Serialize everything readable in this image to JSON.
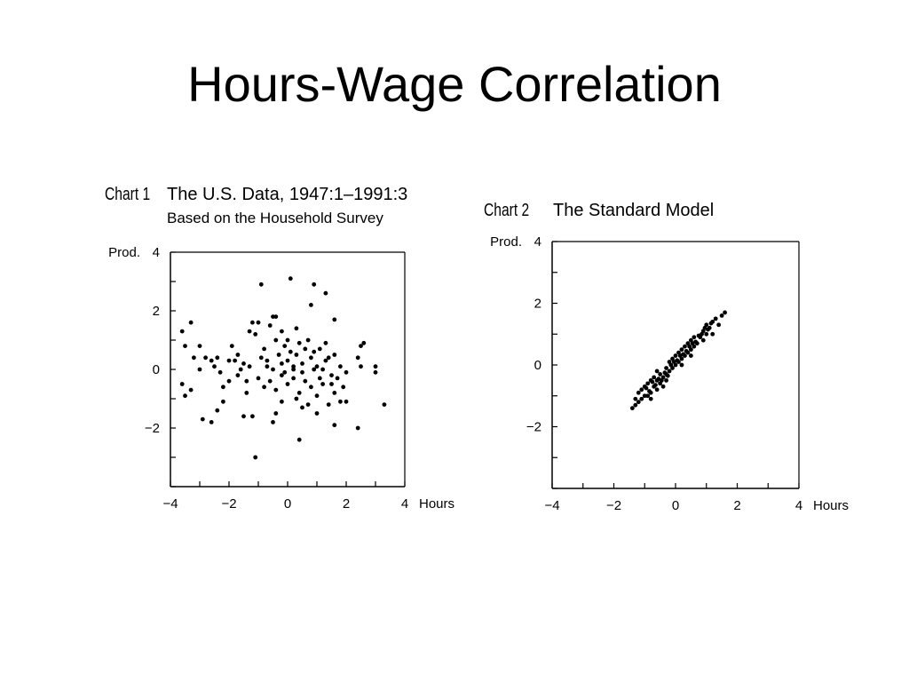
{
  "slide": {
    "title": "Hours-Wage Correlation"
  },
  "chart_data": [
    {
      "type": "scatter",
      "label": "Chart 1",
      "title": "The U.S. Data, 1947:1–1991:3",
      "subtitle": "Based on the Household Survey",
      "xlabel": "Hours",
      "ylabel": "Prod.",
      "xlim": [
        -4,
        4
      ],
      "ylim": [
        -4,
        4
      ],
      "xticks": [
        "−4",
        "−2",
        "0",
        "2",
        "4"
      ],
      "yticks": [
        "4",
        "2",
        "0",
        "−2"
      ],
      "points": [
        [
          -3.6,
          1.3
        ],
        [
          -3.3,
          1.6
        ],
        [
          -3.5,
          0.8
        ],
        [
          -3.2,
          0.4
        ],
        [
          -3.0,
          0.8
        ],
        [
          -3.6,
          -0.5
        ],
        [
          -3.5,
          -0.9
        ],
        [
          -3.3,
          -0.7
        ],
        [
          -3.0,
          0.0
        ],
        [
          -2.8,
          0.4
        ],
        [
          -2.6,
          0.3
        ],
        [
          -2.5,
          0.1
        ],
        [
          -2.4,
          0.4
        ],
        [
          -2.3,
          -0.1
        ],
        [
          -2.2,
          -0.6
        ],
        [
          -2.0,
          0.3
        ],
        [
          -1.9,
          0.8
        ],
        [
          -1.8,
          0.3
        ],
        [
          -1.7,
          0.5
        ],
        [
          -1.6,
          0.0
        ],
        [
          -1.5,
          0.2
        ],
        [
          -1.4,
          -0.4
        ],
        [
          -1.3,
          1.3
        ],
        [
          -1.2,
          1.6
        ],
        [
          -1.1,
          1.2
        ],
        [
          -1.0,
          1.6
        ],
        [
          -0.9,
          0.4
        ],
        [
          -0.8,
          0.7
        ],
        [
          -0.7,
          0.1
        ],
        [
          -0.6,
          1.5
        ],
        [
          -0.5,
          1.8
        ],
        [
          -0.4,
          1.0
        ],
        [
          -0.3,
          0.5
        ],
        [
          -0.2,
          0.2
        ],
        [
          -0.1,
          0.8
        ],
        [
          0.0,
          0.3
        ],
        [
          0.1,
          0.6
        ],
        [
          0.2,
          0.1
        ],
        [
          0.3,
          0.5
        ],
        [
          0.4,
          0.9
        ],
        [
          0.5,
          0.2
        ],
        [
          0.6,
          0.7
        ],
        [
          0.7,
          1.0
        ],
        [
          0.8,
          0.4
        ],
        [
          0.9,
          0.6
        ],
        [
          1.0,
          0.1
        ],
        [
          1.1,
          0.7
        ],
        [
          1.2,
          0.0
        ],
        [
          1.3,
          0.3
        ],
        [
          1.5,
          -0.2
        ],
        [
          1.6,
          0.5
        ],
        [
          1.7,
          -0.3
        ],
        [
          1.8,
          0.1
        ],
        [
          1.9,
          -0.6
        ],
        [
          2.0,
          -0.1
        ],
        [
          -1.0,
          -0.3
        ],
        [
          -0.8,
          -0.6
        ],
        [
          -0.6,
          -0.4
        ],
        [
          -0.4,
          -0.7
        ],
        [
          -0.2,
          -0.2
        ],
        [
          0.0,
          -0.5
        ],
        [
          0.2,
          -0.3
        ],
        [
          0.4,
          -0.8
        ],
        [
          0.6,
          -0.4
        ],
        [
          0.8,
          -0.6
        ],
        [
          1.0,
          -0.9
        ],
        [
          1.2,
          -0.5
        ],
        [
          1.4,
          -1.2
        ],
        [
          1.6,
          -0.8
        ],
        [
          1.8,
          -1.1
        ],
        [
          -2.9,
          -1.7
        ],
        [
          -2.6,
          -1.8
        ],
        [
          -2.4,
          -1.4
        ],
        [
          -1.5,
          -1.6
        ],
        [
          -1.2,
          -1.6
        ],
        [
          -0.5,
          -1.8
        ],
        [
          -0.4,
          -1.5
        ],
        [
          0.5,
          -1.3
        ],
        [
          1.0,
          -1.5
        ],
        [
          1.6,
          -1.9
        ],
        [
          2.0,
          -1.1
        ],
        [
          2.4,
          -2.0
        ],
        [
          -1.1,
          -3.0
        ],
        [
          0.4,
          -2.4
        ],
        [
          0.9,
          2.9
        ],
        [
          1.3,
          2.6
        ],
        [
          0.1,
          3.1
        ],
        [
          -0.9,
          2.9
        ],
        [
          0.8,
          2.2
        ],
        [
          1.6,
          1.7
        ],
        [
          -0.4,
          1.8
        ],
        [
          0.3,
          1.4
        ],
        [
          2.5,
          0.8
        ],
        [
          2.6,
          0.9
        ],
        [
          2.4,
          0.4
        ],
        [
          2.5,
          0.1
        ],
        [
          3.0,
          0.1
        ],
        [
          3.0,
          -0.1
        ],
        [
          3.3,
          -1.2
        ],
        [
          -2.2,
          -1.1
        ],
        [
          -1.4,
          -0.8
        ],
        [
          -0.2,
          -1.1
        ],
        [
          0.3,
          -1.0
        ],
        [
          0.7,
          -1.2
        ],
        [
          1.1,
          -0.3
        ],
        [
          1.3,
          0.9
        ],
        [
          1.5,
          -0.5
        ],
        [
          -0.2,
          1.3
        ],
        [
          0.0,
          1.0
        ],
        [
          0.2,
          0.0
        ],
        [
          0.5,
          -0.1
        ],
        [
          0.9,
          0.0
        ],
        [
          1.4,
          0.4
        ],
        [
          -1.7,
          -0.2
        ],
        [
          -2.0,
          -0.4
        ],
        [
          -1.3,
          0.1
        ],
        [
          -0.7,
          0.3
        ],
        [
          -0.5,
          0.0
        ],
        [
          -0.1,
          -0.1
        ]
      ]
    },
    {
      "type": "scatter",
      "label": "Chart 2",
      "title": "The Standard Model",
      "xlabel": "Hours",
      "ylabel": "Prod.",
      "xlim": [
        -4,
        4
      ],
      "ylim": [
        -4,
        4
      ],
      "xticks": [
        "−4",
        "−2",
        "0",
        "2",
        "4"
      ],
      "yticks": [
        "4",
        "2",
        "0",
        "−2"
      ],
      "points": [
        [
          -1.4,
          -1.4
        ],
        [
          -1.3,
          -1.1
        ],
        [
          -1.2,
          -1.2
        ],
        [
          -1.1,
          -0.8
        ],
        [
          -1.0,
          -1.0
        ],
        [
          -1.0,
          -0.7
        ],
        [
          -0.9,
          -1.0
        ],
        [
          -0.9,
          -0.6
        ],
        [
          -0.8,
          -0.9
        ],
        [
          -0.8,
          -0.5
        ],
        [
          -0.7,
          -0.7
        ],
        [
          -0.7,
          -0.4
        ],
        [
          -0.6,
          -0.8
        ],
        [
          -0.6,
          -0.5
        ],
        [
          -0.5,
          -0.6
        ],
        [
          -0.5,
          -0.3
        ],
        [
          -0.4,
          -0.4
        ],
        [
          -0.4,
          -0.7
        ],
        [
          -0.3,
          -0.3
        ],
        [
          -0.3,
          -0.1
        ],
        [
          -0.2,
          -0.2
        ],
        [
          -0.2,
          0.1
        ],
        [
          -0.1,
          -0.1
        ],
        [
          -0.1,
          0.2
        ],
        [
          0.0,
          0.0
        ],
        [
          0.0,
          0.3
        ],
        [
          0.1,
          0.1
        ],
        [
          0.1,
          0.4
        ],
        [
          0.2,
          0.2
        ],
        [
          0.2,
          0.5
        ],
        [
          0.3,
          0.3
        ],
        [
          0.3,
          0.6
        ],
        [
          0.4,
          0.4
        ],
        [
          0.4,
          0.7
        ],
        [
          0.5,
          0.5
        ],
        [
          0.5,
          0.8
        ],
        [
          0.6,
          0.6
        ],
        [
          0.6,
          0.9
        ],
        [
          0.7,
          0.7
        ],
        [
          0.8,
          0.9
        ],
        [
          0.9,
          1.1
        ],
        [
          1.0,
          1.0
        ],
        [
          1.0,
          1.3
        ],
        [
          1.1,
          1.2
        ],
        [
          1.2,
          1.4
        ],
        [
          1.3,
          1.5
        ],
        [
          1.4,
          1.3
        ],
        [
          1.5,
          1.6
        ],
        [
          1.6,
          1.7
        ],
        [
          -1.2,
          -0.9
        ],
        [
          -1.1,
          -1.1
        ],
        [
          -0.95,
          -0.75
        ],
        [
          -0.85,
          -0.85
        ],
        [
          -0.75,
          -0.55
        ],
        [
          -0.65,
          -0.65
        ],
        [
          -0.55,
          -0.45
        ],
        [
          -0.45,
          -0.5
        ],
        [
          -0.35,
          -0.25
        ],
        [
          -0.25,
          -0.35
        ],
        [
          -0.15,
          0.0
        ],
        [
          -0.05,
          0.1
        ],
        [
          0.05,
          0.15
        ],
        [
          0.15,
          0.3
        ],
        [
          0.25,
          0.35
        ],
        [
          0.35,
          0.45
        ],
        [
          0.45,
          0.6
        ],
        [
          0.55,
          0.7
        ],
        [
          0.65,
          0.75
        ],
        [
          0.75,
          0.95
        ],
        [
          0.85,
          1.0
        ],
        [
          0.95,
          1.2
        ],
        [
          1.05,
          1.15
        ],
        [
          1.15,
          1.35
        ],
        [
          -0.6,
          -0.2
        ],
        [
          -0.3,
          -0.5
        ],
        [
          0.2,
          0.0
        ],
        [
          0.5,
          0.3
        ],
        [
          0.9,
          0.8
        ],
        [
          -1.3,
          -1.3
        ],
        [
          -0.8,
          -1.1
        ],
        [
          1.2,
          1.0
        ]
      ]
    }
  ]
}
